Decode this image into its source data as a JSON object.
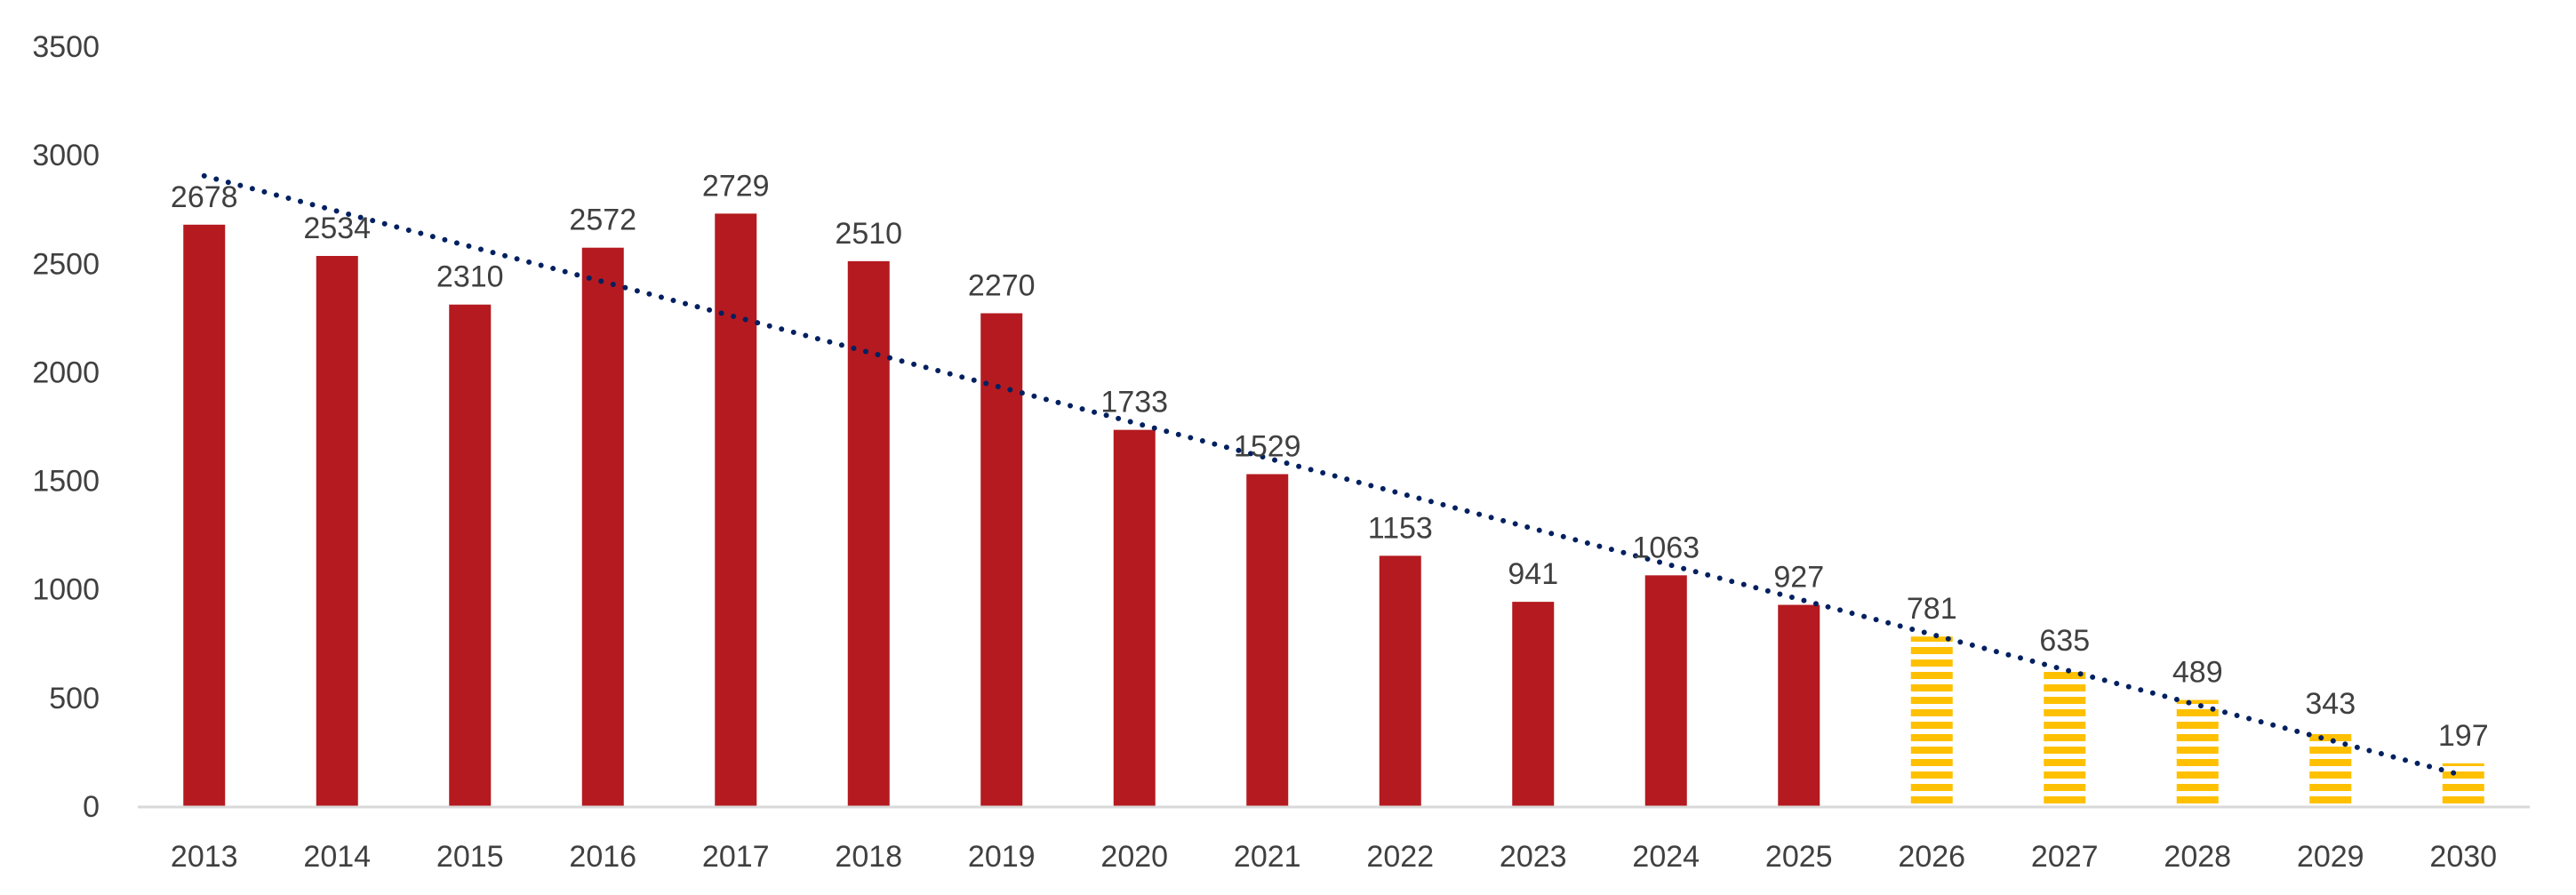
{
  "chart_data": {
    "type": "bar",
    "title": "",
    "xlabel": "",
    "ylabel": "",
    "ylim": [
      0,
      3500
    ],
    "yticks": [
      0,
      500,
      1000,
      1500,
      2000,
      2500,
      3000,
      3500
    ],
    "grid": false,
    "legend": "none",
    "categories": [
      "2013",
      "2014",
      "2015",
      "2016",
      "2017",
      "2018",
      "2019",
      "2020",
      "2021",
      "2022",
      "2023",
      "2024",
      "2025",
      "2026",
      "2027",
      "2028",
      "2029",
      "2030"
    ],
    "values": [
      2678,
      2534,
      2310,
      2572,
      2729,
      2510,
      2270,
      1733,
      1529,
      1153,
      941,
      1063,
      927,
      781,
      635,
      489,
      343,
      197
    ],
    "projected": [
      false,
      false,
      false,
      false,
      false,
      false,
      false,
      false,
      false,
      false,
      false,
      false,
      false,
      true,
      true,
      true,
      true,
      true
    ],
    "trendline": {
      "type": "linear",
      "style": "dotted",
      "color": "#002060"
    },
    "colors": {
      "actual": "#B41A1F",
      "projected": "#FFC000",
      "axis": "#D9D9D9",
      "text": "#404040"
    }
  }
}
